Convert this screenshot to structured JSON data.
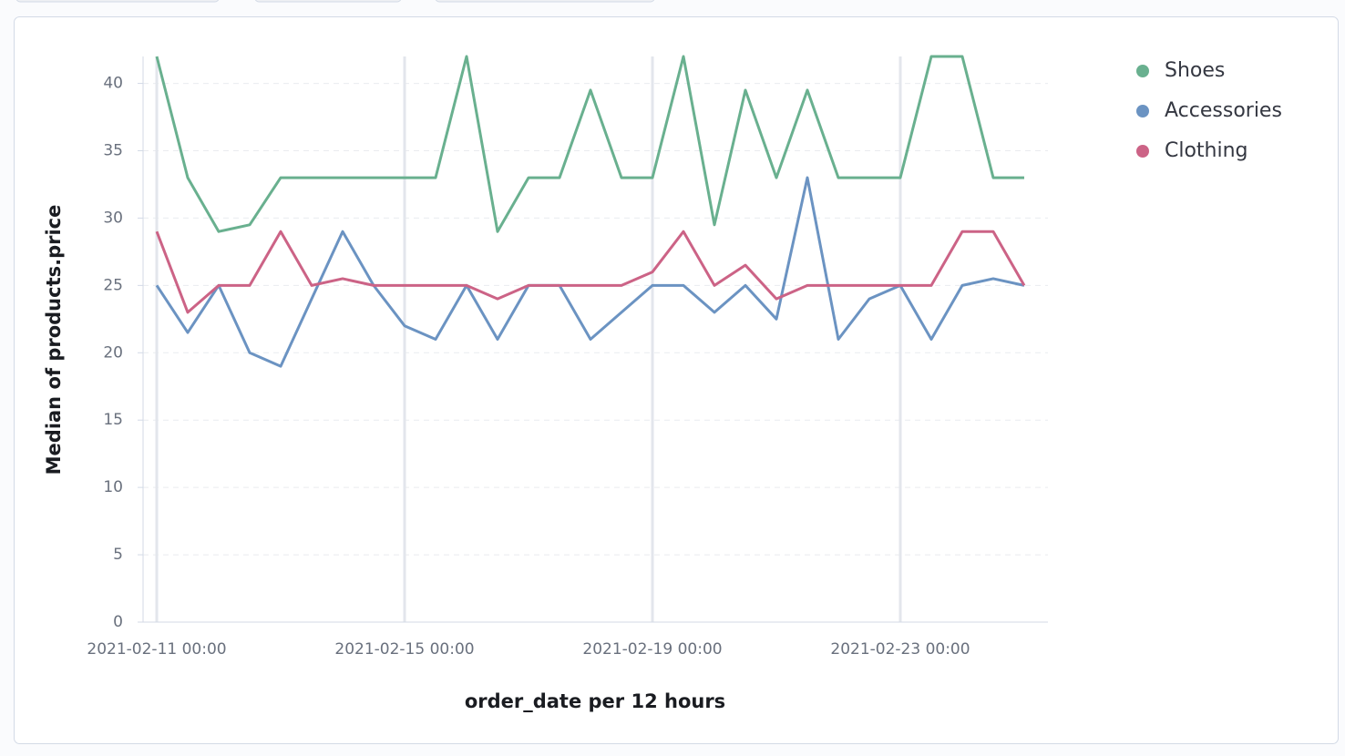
{
  "chart_data": {
    "type": "line",
    "x_label": "order_date per 12 hours",
    "y_label": "Median of products.price",
    "x": [
      "2021-02-11 00:00",
      "2021-02-11 12:00",
      "2021-02-12 00:00",
      "2021-02-12 12:00",
      "2021-02-13 00:00",
      "2021-02-13 12:00",
      "2021-02-14 00:00",
      "2021-02-14 12:00",
      "2021-02-15 00:00",
      "2021-02-15 12:00",
      "2021-02-16 00:00",
      "2021-02-16 12:00",
      "2021-02-17 00:00",
      "2021-02-17 12:00",
      "2021-02-18 00:00",
      "2021-02-18 12:00",
      "2021-02-19 00:00",
      "2021-02-19 12:00",
      "2021-02-20 00:00",
      "2021-02-20 12:00",
      "2021-02-21 00:00",
      "2021-02-21 12:00",
      "2021-02-22 00:00",
      "2021-02-22 12:00",
      "2021-02-23 00:00",
      "2021-02-23 12:00",
      "2021-02-24 00:00",
      "2021-02-24 12:00",
      "2021-02-25 00:00"
    ],
    "series": [
      {
        "name": "Shoes",
        "color": "#69b08f",
        "values": [
          42,
          33,
          29,
          29.5,
          33,
          33,
          33,
          33,
          33,
          33,
          42,
          29,
          33,
          33,
          39.5,
          33,
          33,
          42,
          29.5,
          39.5,
          33,
          39.5,
          33,
          33,
          33,
          42,
          42,
          33,
          33
        ]
      },
      {
        "name": "Accessories",
        "color": "#6b93c2",
        "values": [
          25,
          21.5,
          25,
          20,
          19,
          24,
          29,
          25,
          22,
          21,
          25,
          21,
          25,
          25,
          21,
          23,
          25,
          25,
          23,
          25,
          22.5,
          33,
          21,
          24,
          25,
          21,
          25,
          25.5,
          25
        ]
      },
      {
        "name": "Clothing",
        "color": "#cc6386",
        "values": [
          29,
          23,
          25,
          25,
          29,
          25,
          25.5,
          25,
          25,
          25,
          25,
          24,
          25,
          25,
          25,
          25,
          26,
          29,
          25,
          26.5,
          24,
          25,
          25,
          25,
          25,
          25,
          29,
          29,
          25
        ]
      }
    ],
    "xlim": [
      "2021-02-10 18:42",
      "2021-02-25 09:11"
    ],
    "xticks": [
      "2021-02-11 00:00",
      "2021-02-15 00:00",
      "2021-02-19 00:00",
      "2021-02-23 00:00"
    ],
    "ylim": [
      0,
      42
    ],
    "yticks": [
      0,
      5,
      10,
      15,
      20,
      25,
      30,
      35,
      40
    ],
    "grid": true,
    "legend": "right"
  }
}
